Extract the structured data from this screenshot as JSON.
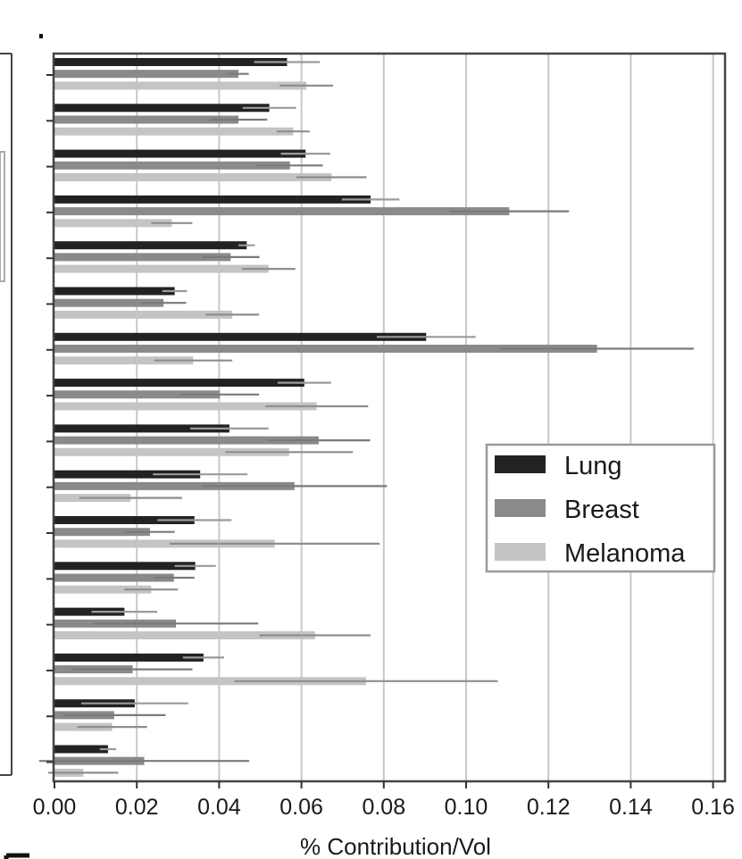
{
  "chart_data": {
    "type": "bar",
    "orientation": "horizontal",
    "xlabel": "% Contribution/Vol",
    "ylabel": "",
    "xlim": [
      0,
      0.16
    ],
    "xticks": [
      "0.00",
      "0.02",
      "0.04",
      "0.06",
      "0.08",
      "0.10",
      "0.12",
      "0.14",
      "0.16"
    ],
    "grid": "vertical",
    "legend_position": "right",
    "series": [
      {
        "name": "Lung",
        "color": "#222222",
        "values": [
          0.0565,
          0.0522,
          0.061,
          0.0768,
          0.0467,
          0.0292,
          0.0903,
          0.0607,
          0.0425,
          0.0354,
          0.034,
          0.0342,
          0.017,
          0.0362,
          0.0195,
          0.013
        ],
        "errors": [
          0.008,
          0.0065,
          0.006,
          0.007,
          0.002,
          0.003,
          0.012,
          0.0065,
          0.0095,
          0.0115,
          0.009,
          0.005,
          0.008,
          0.005,
          0.013,
          0.002
        ]
      },
      {
        "name": "Breast",
        "color": "#8a8a8a",
        "values": [
          0.0447,
          0.0447,
          0.0572,
          0.1105,
          0.0428,
          0.0265,
          0.1318,
          0.0402,
          0.0642,
          0.0583,
          0.0232,
          0.029,
          0.0295,
          0.019,
          0.0145,
          0.0218
        ],
        "errors": [
          0.0025,
          0.007,
          0.008,
          0.0145,
          0.007,
          0.0055,
          0.0235,
          0.0095,
          0.0125,
          0.0225,
          0.006,
          0.005,
          0.02,
          0.0145,
          0.0125,
          0.0255
        ]
      },
      {
        "name": "Melanoma",
        "color": "#c4c4c4",
        "values": [
          0.0612,
          0.058,
          0.0673,
          0.0285,
          0.052,
          0.0432,
          0.0337,
          0.0637,
          0.057,
          0.0185,
          0.0535,
          0.0235,
          0.0633,
          0.0757,
          0.014,
          0.007
        ],
        "errors": [
          0.0065,
          0.004,
          0.0085,
          0.005,
          0.0065,
          0.0065,
          0.0095,
          0.0125,
          0.0155,
          0.0125,
          0.0255,
          0.0065,
          0.0135,
          0.032,
          0.0085,
          0.0085
        ]
      }
    ]
  }
}
